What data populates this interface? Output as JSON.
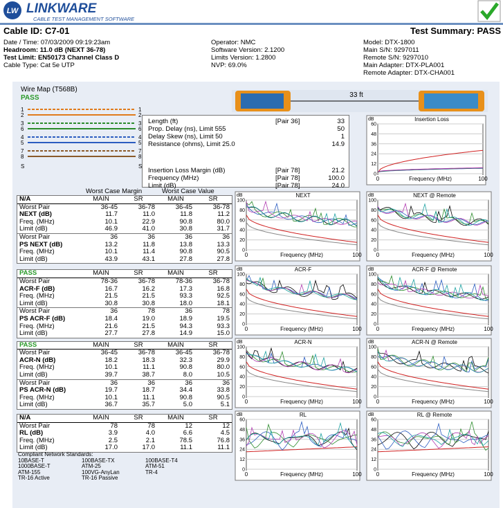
{
  "header": {
    "logo_badge": "LW",
    "logo": "LINKWARE",
    "logo_subtitle": "CABLE TEST MANAGEMENT SOFTWARE",
    "cable_id": "Cable ID: C7-01",
    "summary": "Test Summary: PASS"
  },
  "info": {
    "col1": [
      "Date / Time: 07/03/2009 09:19:23am",
      "Headroom: 11.0 dB (NEXT 36-78)",
      "Test Limit: EN50173 Channel Class D",
      "Cable Type: Cat 5e UTP"
    ],
    "col2": [
      "Operator: NMC",
      "Software Version: 2.1200",
      "Limits Version: 1.2800",
      "NVP: 69.0%"
    ],
    "col3": [
      "Model: DTX-1800",
      "Main S/N: 9297011",
      "Remote S/N: 9297010",
      "Main Adapter: DTX-PLA001",
      "Remote Adapter: DTX-CHA001"
    ]
  },
  "wiremap": {
    "title": "Wire Map (T568B)",
    "result": "PASS",
    "pins": [
      "1",
      "2",
      "3",
      "6",
      "4",
      "5",
      "7",
      "8",
      "S"
    ],
    "length": "33 ft"
  },
  "length_table": [
    [
      "Length (ft)",
      "[Pair 36]",
      "33"
    ],
    [
      "Prop. Delay (ns), Limit 555",
      null,
      "50"
    ],
    [
      "Delay Skew (ns), Limit 50",
      null,
      "1"
    ],
    [
      "Resistance (ohms), Limit 25.0",
      null,
      "14.9"
    ],
    [
      "Insertion Loss Margin (dB)",
      "[Pair 78]",
      "21.2"
    ],
    [
      "Frequency (MHz)",
      "[Pair 78]",
      "100.0"
    ],
    [
      "Limit (dB)",
      "[Pair 78]",
      "24.0"
    ]
  ],
  "table": {
    "group_headers": [
      "Worst Case Margin",
      "Worst Case Value"
    ],
    "sections": [
      {
        "header": [
          "N/A",
          "MAIN",
          "SR",
          "MAIN",
          "SR"
        ],
        "rows": [
          [
            "Worst Pair",
            "36-45",
            "36-78",
            "36-45",
            "36-78"
          ],
          [
            "NEXT (dB)",
            "11.7",
            "11.0",
            "11.8",
            "11.2"
          ],
          [
            "Freq. (MHz)",
            "10.1",
            "22.9",
            "90.8",
            "80.0"
          ],
          [
            "Limit (dB)",
            "46.9",
            "41.0",
            "30.8",
            "31.7"
          ],
          [
            "Worst Pair",
            "36",
            "36",
            "36",
            "36"
          ],
          [
            "PS NEXT (dB)",
            "13.2",
            "11.8",
            "13.8",
            "13.3"
          ],
          [
            "Freq. (MHz)",
            "10.1",
            "11.4",
            "90.8",
            "90.5"
          ],
          [
            "Limit (dB)",
            "43.9",
            "43.1",
            "27.8",
            "27.8"
          ]
        ]
      },
      {
        "header": [
          "PASS",
          "MAIN",
          "SR",
          "MAIN",
          "SR"
        ],
        "rows": [
          [
            "Worst Pair",
            "78-36",
            "36-78",
            "78-36",
            "36-78"
          ],
          [
            "ACR-F (dB)",
            "16.7",
            "16.2",
            "17.3",
            "16.8"
          ],
          [
            "Freq. (MHz)",
            "21.5",
            "21.5",
            "93.3",
            "92.5"
          ],
          [
            "Limit (dB)",
            "30.8",
            "30.8",
            "18.0",
            "18.1"
          ],
          [
            "Worst Pair",
            "36",
            "78",
            "36",
            "78"
          ],
          [
            "PS ACR-F (dB)",
            "18.4",
            "19.0",
            "18.9",
            "19.5"
          ],
          [
            "Freq. (MHz)",
            "21.6",
            "21.5",
            "94.3",
            "93.3"
          ],
          [
            "Limit (dB)",
            "27.7",
            "27.8",
            "14.9",
            "15.0"
          ]
        ]
      },
      {
        "header": [
          "PASS",
          "MAIN",
          "SR",
          "MAIN",
          "SR"
        ],
        "rows": [
          [
            "Worst Pair",
            "36-45",
            "36-78",
            "36-45",
            "36-78"
          ],
          [
            "ACR-N (dB)",
            "18.2",
            "18.3",
            "32.3",
            "29.9"
          ],
          [
            "Freq. (MHz)",
            "10.1",
            "11.1",
            "90.8",
            "80.0"
          ],
          [
            "Limit (dB)",
            "39.7",
            "38.7",
            "8.0",
            "10.5"
          ],
          [
            "Worst Pair",
            "36",
            "36",
            "36",
            "36"
          ],
          [
            "PS ACR-N (dB)",
            "19.7",
            "18.7",
            "34.4",
            "33.8"
          ],
          [
            "Freq. (MHz)",
            "10.1",
            "11.1",
            "90.8",
            "90.5"
          ],
          [
            "Limit (dB)",
            "36.7",
            "35.7",
            "5.0",
            "5.1"
          ]
        ]
      },
      {
        "header": [
          "N/A",
          "MAIN",
          "SR",
          "MAIN",
          "SR"
        ],
        "rows": [
          [
            "Worst Pair",
            "78",
            "78",
            "12",
            "12"
          ],
          [
            "RL (dB)",
            "3.9",
            "4.0",
            "6.6",
            "4.5"
          ],
          [
            "Freq. (MHz)",
            "2.5",
            "2.1",
            "78.5",
            "76.8"
          ],
          [
            "Limit (dB)",
            "17.0",
            "17.0",
            "11.1",
            "11.1"
          ]
        ]
      }
    ]
  },
  "standards": {
    "title": "Compliant Network Standards:",
    "items": [
      "10BASE-T",
      "100BASE-TX",
      "100BASE-T4",
      "1000BASE-T",
      "ATM-25",
      "ATM-51",
      "ATM-155",
      "100VG-AnyLan",
      "TR-4",
      "TR-16 Active",
      "TR-16 Passive"
    ]
  },
  "charts": [
    {
      "title": "Insertion Loss",
      "unit": "dB",
      "xlabel": "Frequency (MHz)",
      "yticks": [
        0,
        12,
        24,
        36,
        48,
        60
      ],
      "xticks": [
        0,
        100
      ]
    },
    {
      "title": "NEXT",
      "unit": "dB",
      "xlabel": "Frequency (MHz)",
      "yticks": [
        0,
        20,
        40,
        60,
        80,
        100
      ],
      "xticks": [
        0,
        100
      ]
    },
    {
      "title": "NEXT @ Remote",
      "unit": "dB",
      "xlabel": "Frequency (MHz)",
      "yticks": [
        0,
        20,
        40,
        60,
        80,
        100
      ],
      "xticks": [
        0,
        100
      ]
    },
    {
      "title": "ACR-F",
      "unit": "dB",
      "xlabel": "Frequency (MHz)",
      "yticks": [
        0,
        20,
        40,
        60,
        80,
        100
      ],
      "xticks": [
        0,
        100
      ]
    },
    {
      "title": "ACR-F @ Remote",
      "unit": "dB",
      "xlabel": "Frequency (MHz)",
      "yticks": [
        0,
        20,
        40,
        60,
        80,
        100
      ],
      "xticks": [
        0,
        100
      ]
    },
    {
      "title": "ACR-N",
      "unit": "dB",
      "xlabel": "Frequency (MHz)",
      "yticks": [
        0,
        20,
        40,
        60,
        80,
        100
      ],
      "xticks": [
        0,
        100
      ]
    },
    {
      "title": "ACR-N @ Remote",
      "unit": "dB",
      "xlabel": "Frequency (MHz)",
      "yticks": [
        0,
        20,
        40,
        60,
        80,
        100
      ],
      "xticks": [
        0,
        100
      ]
    },
    {
      "title": "RL",
      "unit": "dB",
      "xlabel": "Frequency (MHz)",
      "yticks": [
        0,
        12,
        24,
        36,
        48,
        60
      ],
      "xticks": [
        0,
        100
      ]
    },
    {
      "title": "RL @ Remote",
      "unit": "dB",
      "xlabel": "Frequency (MHz)",
      "yticks": [
        0,
        12,
        24,
        36,
        48,
        60
      ],
      "xticks": [
        0,
        100
      ]
    }
  ]
}
